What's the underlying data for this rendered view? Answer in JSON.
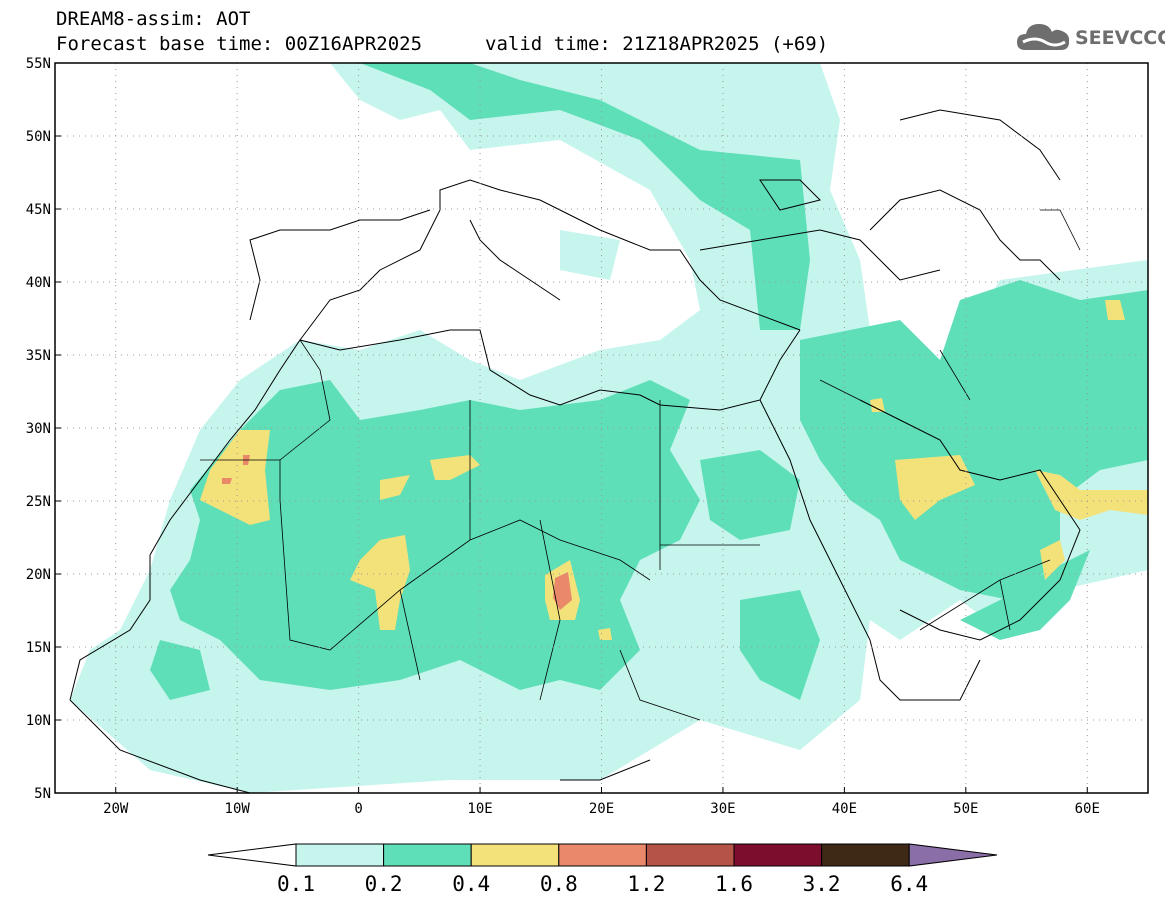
{
  "header": {
    "line1": "DREAM8-assim: AOT",
    "line2": "Forecast base time: 00Z16APR2025",
    "valid": "valid time: 21Z18APR2025 (+69)"
  },
  "logo": {
    "text": "SEEVCCC",
    "icon": "cloud-icon",
    "color": "#6e6e6e"
  },
  "map": {
    "lon_range": [
      -25,
      65
    ],
    "lat_range": [
      5,
      55
    ],
    "lat_labels": [
      "55N",
      "50N",
      "45N",
      "40N",
      "35N",
      "30N",
      "25N",
      "20N",
      "15N",
      "10N",
      "5N"
    ],
    "lat_values": [
      55,
      50,
      45,
      40,
      35,
      30,
      25,
      20,
      15,
      10,
      5
    ],
    "lon_labels": [
      "20W",
      "10W",
      "0",
      "10E",
      "20E",
      "30E",
      "40E",
      "50E",
      "60E"
    ],
    "lon_values": [
      -20,
      -10,
      0,
      10,
      20,
      30,
      40,
      50,
      60
    ],
    "grid": "dotted"
  },
  "colorbar": {
    "labels": [
      "0.1",
      "0.2",
      "0.4",
      "0.8",
      "1.2",
      "1.6",
      "3.2",
      "6.4"
    ],
    "colors": [
      "#c6f5ee",
      "#5fdfb8",
      "#f3e27a",
      "#e9896a",
      "#b45448",
      "#7d0d2d",
      "#3e2816"
    ],
    "under_color": "#ffffff",
    "over_color": "#8a6ea8"
  }
}
